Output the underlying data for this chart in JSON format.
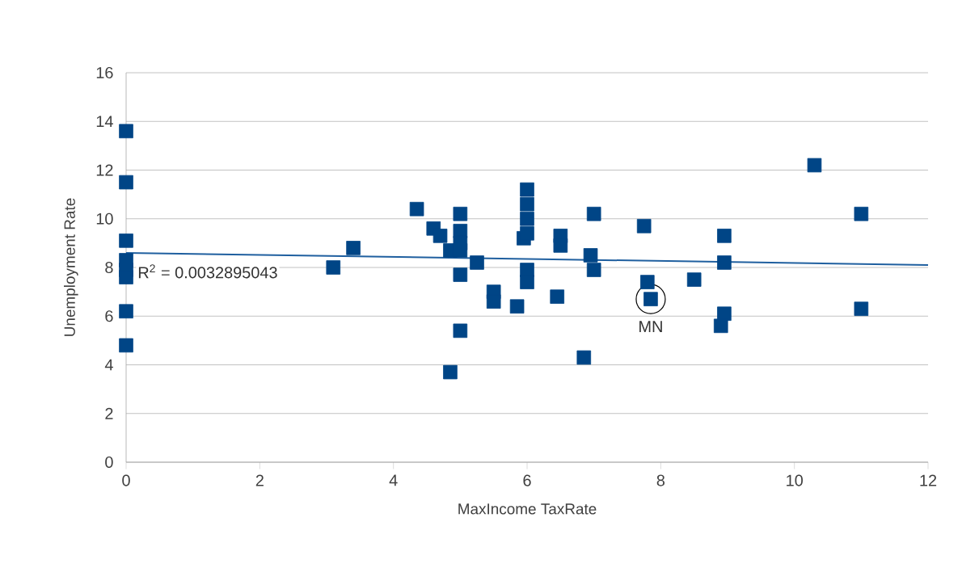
{
  "chart_data": {
    "type": "scatter",
    "xlabel": "MaxIncome TaxRate",
    "ylabel": "Unemployment Rate",
    "xlim": [
      0,
      12
    ],
    "ylim": [
      0,
      16
    ],
    "xticks": [
      0,
      2,
      4,
      6,
      8,
      10,
      12
    ],
    "yticks": [
      0,
      2,
      4,
      6,
      8,
      10,
      12,
      14,
      16
    ],
    "grid": "y",
    "annotations": [
      "R$^{2}$ = 0.0032895043",
      {
        "text": "MN",
        "x": 7.85,
        "y": 6.7
      }
    ],
    "series": [
      {
        "marker": "square",
        "color": "#004586",
        "x": [
          0,
          0,
          0,
          0,
          0,
          0,
          0,
          0,
          3.1,
          3.4,
          4.35,
          4.6,
          4.7,
          4.85,
          4.85,
          5.0,
          5.0,
          5.0,
          5.0,
          5.0,
          5.0,
          5.25,
          5.5,
          5.5,
          5.85,
          5.95,
          6.0,
          6.0,
          6.0,
          6.0,
          6.0,
          6.0,
          6.45,
          6.5,
          6.5,
          6.85,
          6.95,
          7.0,
          7.0,
          7.75,
          7.8,
          7.85,
          8.5,
          8.95,
          8.95,
          8.95,
          8.9,
          10.3,
          11,
          11
        ],
        "values": [
          13.6,
          11.5,
          9.1,
          8.3,
          7.9,
          7.6,
          6.2,
          4.8,
          8.0,
          8.8,
          10.4,
          9.6,
          9.3,
          8.7,
          3.7,
          10.2,
          9.5,
          9.0,
          8.7,
          7.7,
          5.4,
          8.2,
          7.0,
          6.6,
          6.4,
          9.2,
          11.2,
          10.6,
          10.0,
          9.4,
          7.9,
          7.4,
          6.8,
          9.3,
          8.9,
          4.3,
          8.5,
          10.2,
          7.9,
          9.7,
          7.4,
          6.7,
          7.5,
          9.3,
          8.2,
          6.1,
          5.6,
          12.2,
          10.2,
          6.3
        ]
      },
      {
        "type": "line",
        "marker": "none",
        "color": "#1f5f9f",
        "x": [
          0,
          12
        ],
        "values": [
          8.6,
          8.1
        ]
      }
    ]
  }
}
